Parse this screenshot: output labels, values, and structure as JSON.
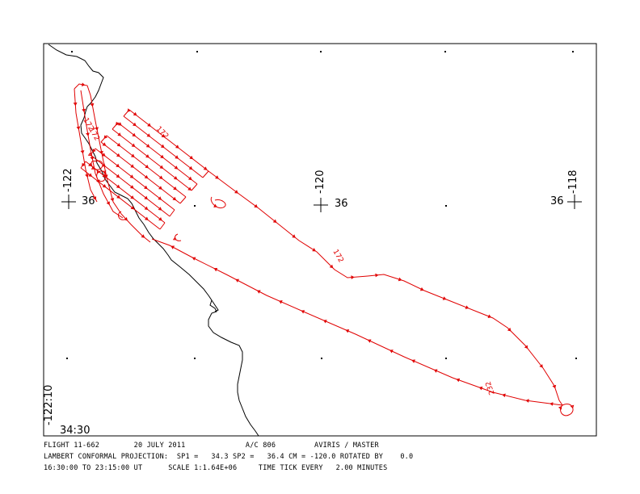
{
  "map": {
    "graticule_labels": {
      "lon_w122": "-122",
      "lat_36_a": "36",
      "lon_w120": "-120",
      "lat_36_b": "36",
      "lat_36_c": "36",
      "lon_w118": "-118",
      "lon_w122_10": "-122:10",
      "lat_34_30": "34:30"
    },
    "track_time_labels": [
      "172",
      "172",
      "172",
      "172",
      "232"
    ],
    "colors": {
      "track": "#e00000",
      "coast": "#000000",
      "frame": "#000000"
    }
  },
  "footer": {
    "line1": "FLIGHT 11-662        20 JULY 2011              A/C 806         AVIRIS / MASTER",
    "line2": "LAMBERT CONFORMAL PROJECTION:  SP1 =   34.3 SP2 =   36.4 CM = -120.0 ROTATED BY    0.0",
    "line3": "16:30:00 TO 23:15:00 UT      SCALE 1:1.64E+06     TIME TICK EVERY   2.00 MINUTES"
  }
}
